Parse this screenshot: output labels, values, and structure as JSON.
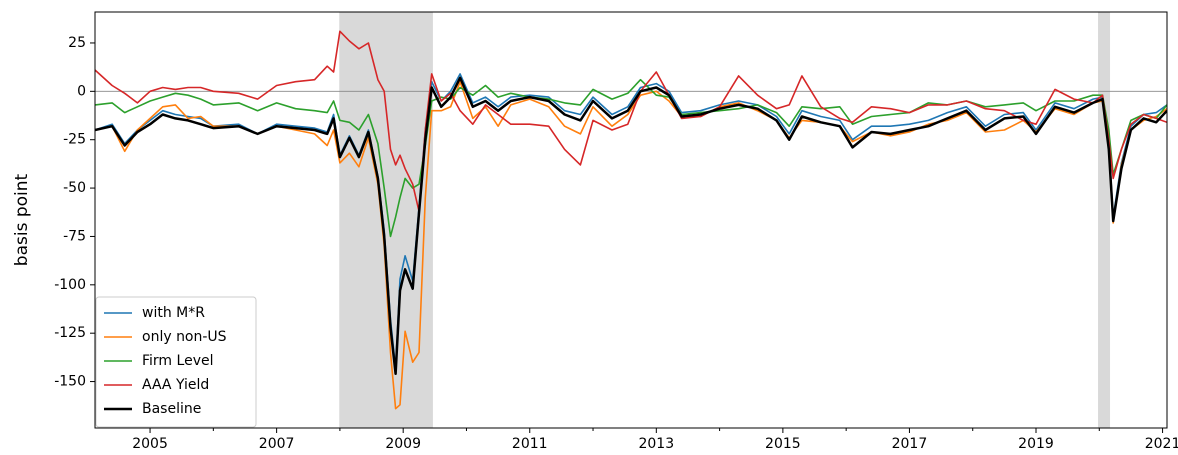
{
  "chart_data": {
    "type": "line",
    "ylabel": "basis point",
    "x": [
      2004.13,
      2004.4,
      2004.6,
      2004.8,
      2005.0,
      2005.2,
      2005.4,
      2005.6,
      2005.8,
      2006.0,
      2006.4,
      2006.7,
      2007.0,
      2007.3,
      2007.6,
      2007.8,
      2007.9,
      2008.0,
      2008.15,
      2008.3,
      2008.45,
      2008.6,
      2008.7,
      2008.8,
      2008.88,
      2008.95,
      2009.03,
      2009.15,
      2009.25,
      2009.35,
      2009.45,
      2009.6,
      2009.75,
      2009.9,
      2010.1,
      2010.3,
      2010.5,
      2010.7,
      2011.0,
      2011.3,
      2011.55,
      2011.8,
      2012.0,
      2012.3,
      2012.55,
      2012.75,
      2013.0,
      2013.2,
      2013.4,
      2013.7,
      2014.0,
      2014.3,
      2014.6,
      2014.9,
      2015.1,
      2015.3,
      2015.6,
      2015.9,
      2016.1,
      2016.4,
      2016.7,
      2017.0,
      2017.3,
      2017.6,
      2017.9,
      2018.2,
      2018.5,
      2018.8,
      2019.0,
      2019.3,
      2019.6,
      2019.9,
      2020.05,
      2020.15,
      2020.22,
      2020.35,
      2020.5,
      2020.7,
      2020.9,
      2021.07
    ],
    "series": [
      {
        "name": "with M*R",
        "color": "#1f77b4",
        "values": [
          -20,
          -17,
          -27,
          -20,
          -15,
          -10,
          -12,
          -13,
          -14,
          -18,
          -17,
          -22,
          -17,
          -18,
          -19,
          -21,
          -12,
          -33,
          -23,
          -33,
          -20,
          -44,
          -72,
          -118,
          -143,
          -97,
          -85,
          -98,
          -60,
          -20,
          5,
          -5,
          0,
          9,
          -6,
          -3,
          -8,
          -3,
          -2,
          -3,
          -10,
          -12,
          -3,
          -12,
          -8,
          2,
          4,
          0,
          -11,
          -10,
          -7,
          -5,
          -7,
          -13,
          -22,
          -10,
          -13,
          -15,
          -25,
          -18,
          -18,
          -17,
          -15,
          -11,
          -8,
          -18,
          -12,
          -11,
          -20,
          -6,
          -9,
          -4,
          -3,
          -27,
          -65,
          -37,
          -18,
          -12,
          -11,
          -7
        ]
      },
      {
        "name": "only non-US",
        "color": "#ff7f0e",
        "values": [
          -20,
          -18,
          -31,
          -20,
          -14,
          -8,
          -7,
          -14,
          -13,
          -18,
          -18,
          -22,
          -18,
          -20,
          -22,
          -28,
          -20,
          -37,
          -32,
          -39,
          -24,
          -48,
          -80,
          -135,
          -164,
          -162,
          -124,
          -140,
          -135,
          -55,
          -10,
          -10,
          -8,
          5,
          -14,
          -8,
          -18,
          -7,
          -4,
          -8,
          -18,
          -22,
          -8,
          -18,
          -12,
          -2,
          0,
          -5,
          -13,
          -13,
          -8,
          -6,
          -10,
          -15,
          -24,
          -15,
          -16,
          -18,
          -26,
          -21,
          -23,
          -21,
          -17,
          -15,
          -11,
          -21,
          -20,
          -15,
          -21,
          -9,
          -12,
          -6,
          -5,
          -30,
          -68,
          -38,
          -20,
          -15,
          -13,
          -9
        ]
      },
      {
        "name": "Firm Level",
        "color": "#2ca02c",
        "values": [
          -7,
          -6,
          -11,
          -8,
          -5,
          -3,
          -1,
          -2,
          -4,
          -7,
          -6,
          -10,
          -6,
          -9,
          -10,
          -11,
          -5,
          -15,
          -16,
          -20,
          -12,
          -27,
          -50,
          -75,
          -65,
          -55,
          -45,
          -50,
          -48,
          -28,
          -5,
          -3,
          -4,
          2,
          -2,
          3,
          -3,
          -1,
          -3,
          -4,
          -6,
          -7,
          1,
          -4,
          -1,
          6,
          -2,
          -3,
          -12,
          -11,
          -10,
          -9,
          -7,
          -11,
          -18,
          -8,
          -9,
          -8,
          -17,
          -13,
          -12,
          -11,
          -6,
          -7,
          -5,
          -8,
          -7,
          -6,
          -10,
          -5,
          -5,
          -2,
          -2,
          -20,
          -43,
          -30,
          -15,
          -12,
          -14,
          -7
        ]
      },
      {
        "name": "AAA Yield",
        "color": "#d62728",
        "values": [
          11,
          3,
          -1,
          -6,
          0,
          2,
          1,
          2,
          2,
          0,
          -1,
          -4,
          3,
          5,
          6,
          13,
          10,
          31,
          26,
          22,
          25,
          6,
          0,
          -30,
          -38,
          -33,
          -40,
          -48,
          -62,
          -20,
          9,
          -5,
          -1,
          -10,
          -17,
          -7,
          -12,
          -17,
          -17,
          -18,
          -30,
          -38,
          -15,
          -20,
          -17,
          0,
          10,
          -2,
          -14,
          -13,
          -8,
          8,
          -2,
          -9,
          -7,
          8,
          -8,
          -14,
          -16,
          -8,
          -9,
          -11,
          -7,
          -7,
          -5,
          -9,
          -10,
          -15,
          -17,
          1,
          -4,
          -6,
          -2,
          -25,
          -45,
          -30,
          -17,
          -12,
          -14,
          -16
        ]
      },
      {
        "name": "Baseline",
        "color": "#000000",
        "width": 2.5,
        "values": [
          -20,
          -18,
          -28,
          -21,
          -17,
          -12,
          -14,
          -15,
          -17,
          -19,
          -18,
          -22,
          -18,
          -19,
          -20,
          -22,
          -14,
          -34,
          -24,
          -34,
          -21,
          -45,
          -75,
          -122,
          -146,
          -103,
          -92,
          -102,
          -63,
          -25,
          2,
          -8,
          -3,
          7,
          -8,
          -5,
          -10,
          -5,
          -3,
          -5,
          -12,
          -15,
          -5,
          -14,
          -10,
          0,
          2,
          -2,
          -13,
          -12,
          -9,
          -7,
          -9,
          -15,
          -25,
          -13,
          -16,
          -18,
          -29,
          -21,
          -22,
          -20,
          -18,
          -14,
          -10,
          -20,
          -14,
          -13,
          -22,
          -8,
          -11,
          -6,
          -4,
          -30,
          -67,
          -40,
          -20,
          -14,
          -16,
          -10
        ]
      }
    ],
    "recessions": [
      [
        2007.99,
        2009.47
      ],
      [
        2019.98,
        2020.17
      ]
    ],
    "hline": 0,
    "xlim": [
      2004.13,
      2021.07
    ],
    "xticks": [
      2005,
      2007,
      2009,
      2011,
      2013,
      2015,
      2017,
      2019,
      2021
    ],
    "xminorticks": [
      2006,
      2008,
      2010,
      2012,
      2014,
      2016,
      2018,
      2020
    ],
    "ylim": [
      -174,
      41
    ],
    "yticks": [
      25,
      0,
      -25,
      -50,
      -75,
      -100,
      -125,
      -150
    ],
    "legend": "lower left"
  }
}
